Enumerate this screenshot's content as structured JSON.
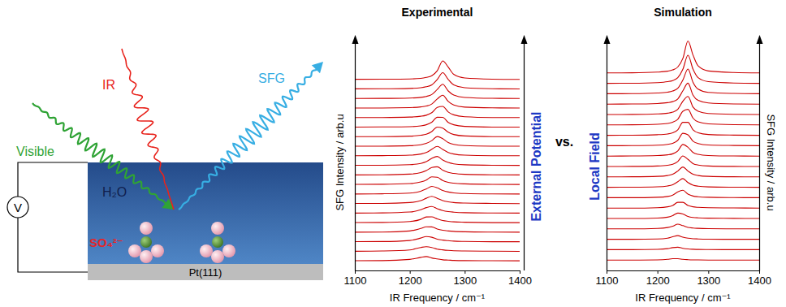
{
  "chart_data": [
    {
      "type": "line",
      "title": "Experimental",
      "xlabel": "IR Frequency / cm⁻¹",
      "ylabel": "SFG Intensity / arb.u",
      "annotations": [
        "External Potential"
      ],
      "color": "#cc0000",
      "tick_labels": "x",
      "xlim": [
        1100,
        1400
      ],
      "xticks": [
        1100,
        1200,
        1300,
        1400
      ],
      "ylim": [
        0,
        24.5
      ],
      "x": [
        1100,
        1150,
        1200,
        1220,
        1230,
        1240,
        1250,
        1260,
        1270,
        1280,
        1300,
        1350,
        1400
      ],
      "series": [
        {
          "offset": 1,
          "values": [
            0.02,
            0.03,
            0.16,
            0.37,
            0.46,
            0.31,
            0.21,
            0.12,
            0.09,
            0.05,
            0.03,
            0.02,
            0.01
          ]
        },
        {
          "offset": 2,
          "values": [
            0.01,
            0.04,
            0.15,
            0.41,
            0.49,
            0.41,
            0.24,
            0.16,
            0.1,
            0.06,
            0.04,
            0.02,
            0.0
          ]
        },
        {
          "offset": 3,
          "values": [
            0.02,
            0.03,
            0.14,
            0.39,
            0.55,
            0.48,
            0.28,
            0.18,
            0.12,
            0.07,
            0.04,
            0.01,
            0.01
          ]
        },
        {
          "offset": 4,
          "values": [
            0.01,
            0.02,
            0.14,
            0.4,
            0.57,
            0.56,
            0.34,
            0.21,
            0.14,
            0.09,
            0.05,
            0.02,
            0.01
          ]
        },
        {
          "offset": 5,
          "values": [
            0.02,
            0.03,
            0.13,
            0.35,
            0.6,
            0.61,
            0.41,
            0.23,
            0.15,
            0.09,
            0.05,
            0.01,
            0.01
          ]
        },
        {
          "offset": 6,
          "values": [
            0.01,
            0.03,
            0.12,
            0.36,
            0.58,
            0.7,
            0.47,
            0.28,
            0.17,
            0.11,
            0.05,
            0.02,
            0.01
          ]
        },
        {
          "offset": 7,
          "values": [
            0.02,
            0.02,
            0.11,
            0.31,
            0.56,
            0.76,
            0.55,
            0.32,
            0.19,
            0.11,
            0.06,
            0.02,
            0.0
          ]
        },
        {
          "offset": 8,
          "values": [
            0.01,
            0.03,
            0.1,
            0.3,
            0.53,
            0.8,
            0.65,
            0.38,
            0.22,
            0.13,
            0.06,
            0.02,
            0.01
          ]
        },
        {
          "offset": 9,
          "values": [
            0.02,
            0.03,
            0.1,
            0.27,
            0.47,
            0.8,
            0.76,
            0.42,
            0.23,
            0.14,
            0.07,
            0.02,
            0.01
          ]
        },
        {
          "offset": 10,
          "values": [
            0.01,
            0.02,
            0.09,
            0.25,
            0.46,
            0.78,
            0.86,
            0.5,
            0.27,
            0.16,
            0.07,
            0.02,
            0.01
          ]
        },
        {
          "offset": 11,
          "values": [
            0.02,
            0.02,
            0.08,
            0.21,
            0.39,
            0.74,
            0.94,
            0.57,
            0.31,
            0.17,
            0.07,
            0.02,
            0.01
          ]
        },
        {
          "offset": 12,
          "values": [
            0.01,
            0.03,
            0.08,
            0.2,
            0.35,
            0.69,
            1.0,
            0.68,
            0.36,
            0.2,
            0.08,
            0.02,
            0.01
          ]
        },
        {
          "offset": 13,
          "values": [
            0.01,
            0.02,
            0.07,
            0.17,
            0.31,
            0.6,
            1.03,
            0.8,
            0.4,
            0.21,
            0.08,
            0.02,
            0.01
          ]
        },
        {
          "offset": 14,
          "values": [
            0.02,
            0.02,
            0.07,
            0.16,
            0.27,
            0.55,
            1.02,
            0.91,
            0.48,
            0.24,
            0.09,
            0.02,
            0.01
          ]
        },
        {
          "offset": 15,
          "values": [
            0.01,
            0.03,
            0.06,
            0.14,
            0.26,
            0.52,
            1.05,
            1.04,
            0.51,
            0.26,
            0.09,
            0.02,
            0.01
          ]
        },
        {
          "offset": 16,
          "values": [
            0.01,
            0.02,
            0.07,
            0.15,
            0.26,
            0.52,
            1.07,
            1.19,
            0.6,
            0.3,
            0.1,
            0.02,
            0.01
          ]
        },
        {
          "offset": 17,
          "values": [
            0.02,
            0.02,
            0.06,
            0.13,
            0.22,
            0.43,
            0.96,
            1.36,
            0.7,
            0.33,
            0.11,
            0.03,
            0.01
          ]
        },
        {
          "offset": 18,
          "values": [
            0.01,
            0.02,
            0.06,
            0.13,
            0.23,
            0.43,
            0.96,
            1.5,
            0.8,
            0.37,
            0.12,
            0.03,
            0.01
          ]
        },
        {
          "offset": 19,
          "values": [
            0.02,
            0.03,
            0.07,
            0.14,
            0.24,
            0.44,
            1.0,
            1.71,
            1.0,
            0.44,
            0.14,
            0.03,
            0.01
          ]
        },
        {
          "offset": 20,
          "values": [
            0.02,
            0.03,
            0.06,
            0.12,
            0.22,
            0.4,
            0.92,
            1.95,
            1.3,
            0.54,
            0.16,
            0.04,
            0.01
          ]
        }
      ]
    },
    {
      "type": "line",
      "title": "Simulation",
      "xlabel": "IR Frequency / cm⁻¹",
      "ylabel": "SFG Intensity / arb.u",
      "annotations": [
        "Local Field"
      ],
      "color": "#cc0000",
      "tick_labels": "x",
      "xlim": [
        1100,
        1400
      ],
      "xticks": [
        1100,
        1200,
        1300,
        1400
      ],
      "ylim": [
        0,
        22.5
      ],
      "x": [
        1100,
        1150,
        1200,
        1220,
        1230,
        1240,
        1250,
        1260,
        1270,
        1280,
        1300,
        1350,
        1400
      ],
      "series": [
        {
          "offset": 1,
          "values": [
            0,
            0,
            0.02,
            0.07,
            0.13,
            0.13,
            0.07,
            0.04,
            0.02,
            0.01,
            0,
            0,
            0
          ]
        },
        {
          "offset": 2,
          "values": [
            0,
            0,
            0.03,
            0.1,
            0.2,
            0.24,
            0.13,
            0.07,
            0.04,
            0.02,
            0.01,
            0,
            0
          ]
        },
        {
          "offset": 3,
          "values": [
            0,
            0,
            0.03,
            0.11,
            0.24,
            0.35,
            0.2,
            0.1,
            0.05,
            0.03,
            0.01,
            0,
            0
          ]
        },
        {
          "offset": 4,
          "values": [
            0,
            0,
            0.04,
            0.13,
            0.26,
            0.45,
            0.31,
            0.14,
            0.08,
            0.05,
            0.02,
            0,
            0
          ]
        },
        {
          "offset": 5,
          "values": [
            0,
            0,
            0.04,
            0.13,
            0.28,
            0.52,
            0.43,
            0.2,
            0.1,
            0.06,
            0.03,
            0.01,
            0
          ]
        },
        {
          "offset": 6,
          "values": [
            0,
            0,
            0.04,
            0.12,
            0.25,
            0.55,
            0.55,
            0.25,
            0.12,
            0.07,
            0.03,
            0.01,
            0
          ]
        },
        {
          "offset": 7,
          "values": [
            0,
            0,
            0.04,
            0.12,
            0.25,
            0.56,
            0.71,
            0.35,
            0.16,
            0.09,
            0.04,
            0.01,
            0
          ]
        },
        {
          "offset": 8,
          "values": [
            0,
            0.01,
            0.05,
            0.13,
            0.25,
            0.54,
            0.84,
            0.46,
            0.21,
            0.11,
            0.04,
            0.01,
            0
          ]
        },
        {
          "offset": 9,
          "values": [
            0,
            0.01,
            0.05,
            0.13,
            0.25,
            0.56,
            0.95,
            0.56,
            0.25,
            0.13,
            0.05,
            0.01,
            0
          ]
        },
        {
          "offset": 10,
          "values": [
            0,
            0.01,
            0.05,
            0.12,
            0.21,
            0.48,
            1.02,
            0.68,
            0.28,
            0.14,
            0.05,
            0.01,
            0
          ]
        },
        {
          "offset": 11,
          "values": [
            0,
            0.01,
            0.05,
            0.12,
            0.22,
            0.5,
            1.12,
            0.85,
            0.35,
            0.17,
            0.06,
            0.01,
            0
          ]
        },
        {
          "offset": 12,
          "values": [
            0,
            0.01,
            0.05,
            0.13,
            0.23,
            0.52,
            1.19,
            1.04,
            0.43,
            0.21,
            0.07,
            0.02,
            0
          ]
        },
        {
          "offset": 13,
          "values": [
            0,
            0.01,
            0.06,
            0.13,
            0.24,
            0.53,
            1.25,
            1.25,
            0.53,
            0.24,
            0.08,
            0.02,
            0
          ]
        },
        {
          "offset": 14,
          "values": [
            0,
            0.01,
            0.06,
            0.14,
            0.26,
            0.55,
            1.31,
            1.5,
            0.65,
            0.29,
            0.1,
            0.02,
            0
          ]
        },
        {
          "offset": 15,
          "values": [
            0,
            0.01,
            0.06,
            0.13,
            0.23,
            0.5,
            1.28,
            1.74,
            0.71,
            0.31,
            0.1,
            0.02,
            0
          ]
        },
        {
          "offset": 16,
          "values": [
            0,
            0.01,
            0.06,
            0.14,
            0.24,
            0.5,
            1.28,
            2.02,
            0.86,
            0.36,
            0.11,
            0.02,
            0
          ]
        },
        {
          "offset": 17,
          "values": [
            0,
            0.01,
            0.07,
            0.15,
            0.26,
            0.52,
            1.32,
            2.38,
            1.09,
            0.44,
            0.13,
            0.03,
            0
          ]
        },
        {
          "offset": 18,
          "values": [
            0,
            0.01,
            0.07,
            0.16,
            0.27,
            0.54,
            1.35,
            2.7,
            1.35,
            0.54,
            0.16,
            0.03,
            0
          ]
        },
        {
          "offset": 19,
          "values": [
            0,
            0.01,
            0.08,
            0.17,
            0.29,
            0.57,
            1.4,
            3.07,
            1.71,
            0.67,
            0.19,
            0.04,
            0
          ]
        }
      ]
    }
  ],
  "connector": "vs.",
  "diagram": {
    "beams": {
      "ir": "IR",
      "visible": "Visible",
      "sfg": "SFG"
    },
    "solvent": "H₂O",
    "adsorbate": "SO₄²⁻",
    "electrode": "Pt(111)",
    "voltmeter": "V"
  }
}
